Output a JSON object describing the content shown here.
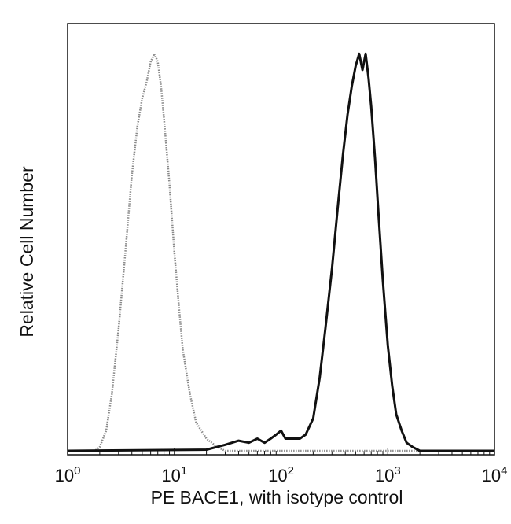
{
  "chart_data": {
    "type": "line",
    "title": "",
    "xlabel": "PE  BACE1,  with isotype control",
    "ylabel": "Relative Cell Number",
    "x_scale": "log",
    "xlim": [
      1,
      10000
    ],
    "ylim": [
      0,
      100
    ],
    "grid": false,
    "legend": "none",
    "x_ticks": [
      {
        "value": 1,
        "base": "10",
        "exp": "0"
      },
      {
        "value": 10,
        "base": "10",
        "exp": "1"
      },
      {
        "value": 100,
        "base": "10",
        "exp": "2"
      },
      {
        "value": 1000,
        "base": "10",
        "exp": "3"
      },
      {
        "value": 10000,
        "base": "10",
        "exp": "4"
      }
    ],
    "series": [
      {
        "color": "#8a8a8a",
        "style": "dotted",
        "x": [
          1,
          1.8,
          2.0,
          2.3,
          2.6,
          3.0,
          3.5,
          4.0,
          4.5,
          5.0,
          5.5,
          6.0,
          6.5,
          7.0,
          7.5,
          8.0,
          9.0,
          10,
          11,
          12,
          14,
          16,
          20,
          25,
          30,
          10000
        ],
        "y": [
          0,
          0,
          1,
          5,
          14,
          30,
          50,
          68,
          80,
          87,
          91,
          96,
          98,
          96,
          90,
          82,
          66,
          49,
          36,
          25,
          14,
          7,
          3,
          1,
          0,
          0
        ]
      },
      {
        "color": "#111111",
        "style": "solid",
        "x": [
          1,
          20,
          30,
          40,
          50,
          60,
          70,
          80,
          90,
          100,
          110,
          130,
          150,
          170,
          200,
          230,
          260,
          300,
          340,
          380,
          420,
          460,
          500,
          540,
          580,
          620,
          660,
          700,
          760,
          820,
          900,
          1000,
          1100,
          1200,
          1350,
          1500,
          1700,
          2000,
          10000
        ],
        "y": [
          0,
          0.3,
          1.5,
          2.5,
          2,
          3,
          2,
          3,
          4,
          5,
          3,
          3,
          3,
          4,
          8,
          18,
          30,
          45,
          60,
          73,
          83,
          90,
          95,
          98,
          94,
          98,
          92,
          85,
          72,
          58,
          42,
          26,
          16,
          9,
          5,
          2,
          1,
          0,
          0
        ]
      }
    ]
  }
}
